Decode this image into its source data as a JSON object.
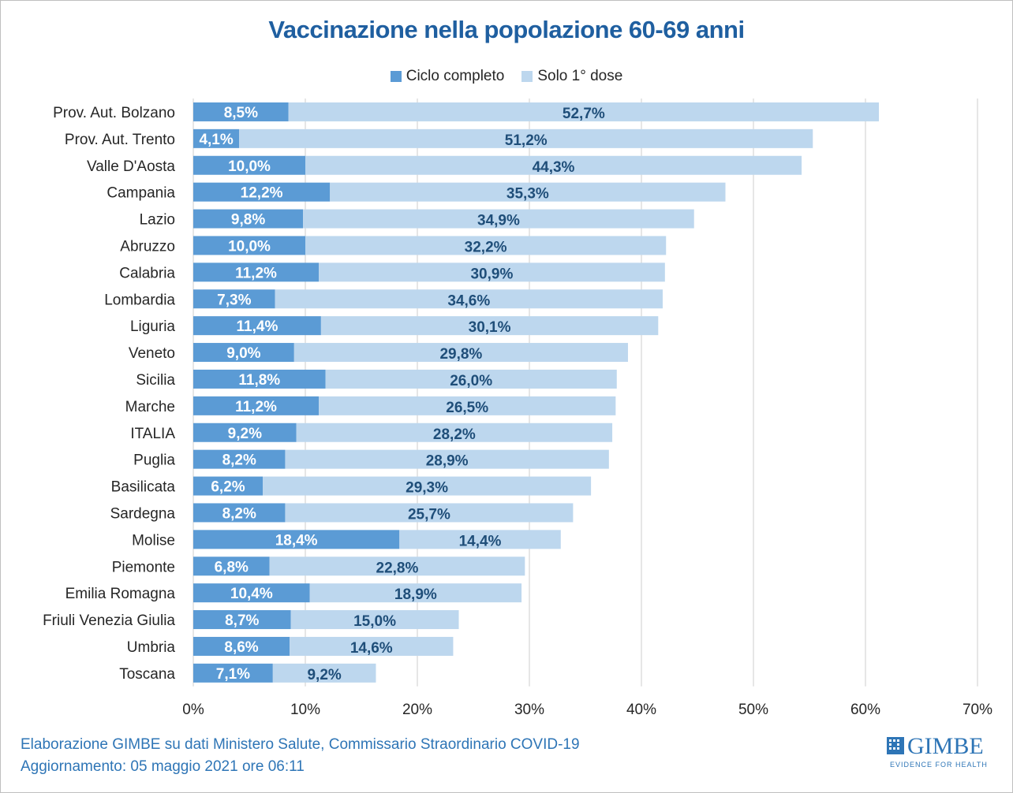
{
  "chart_data": {
    "type": "bar",
    "orientation": "horizontal",
    "stacked": true,
    "title": "Vaccinazione nella popolazione 60-69 anni",
    "categories": [
      "Prov. Aut. Bolzano",
      "Prov. Aut. Trento",
      "Valle D'Aosta",
      "Campania",
      "Lazio",
      "Abruzzo",
      "Calabria",
      "Lombardia",
      "Liguria",
      "Veneto",
      "Sicilia",
      "Marche",
      "ITALIA",
      "Puglia",
      "Basilicata",
      "Sardegna",
      "Molise",
      "Piemonte",
      "Emilia Romagna",
      "Friuli Venezia Giulia",
      "Umbria",
      "Toscana"
    ],
    "series": [
      {
        "name": "Ciclo completo",
        "color": "#5b9bd5",
        "values": [
          8.5,
          4.1,
          10.0,
          12.2,
          9.8,
          10.0,
          11.2,
          7.3,
          11.4,
          9.0,
          11.8,
          11.2,
          9.2,
          8.2,
          6.2,
          8.2,
          18.4,
          6.8,
          10.4,
          8.7,
          8.6,
          7.1
        ],
        "labels": [
          "8,5%",
          "4,1%",
          "10,0%",
          "12,2%",
          "9,8%",
          "10,0%",
          "11,2%",
          "7,3%",
          "11,4%",
          "9,0%",
          "11,8%",
          "11,2%",
          "9,2%",
          "8,2%",
          "6,2%",
          "8,2%",
          "18,4%",
          "6,8%",
          "10,4%",
          "8,7%",
          "8,6%",
          "7,1%"
        ]
      },
      {
        "name": "Solo 1° dose",
        "color": "#bdd7ee",
        "values": [
          52.7,
          51.2,
          44.3,
          35.3,
          34.9,
          32.2,
          30.9,
          34.6,
          30.1,
          29.8,
          26.0,
          26.5,
          28.2,
          28.9,
          29.3,
          25.7,
          14.4,
          22.8,
          18.9,
          15.0,
          14.6,
          9.2
        ],
        "labels": [
          "52,7%",
          "51,2%",
          "44,3%",
          "35,3%",
          "34,9%",
          "32,2%",
          "30,9%",
          "34,6%",
          "30,1%",
          "29,8%",
          "26,0%",
          "26,5%",
          "28,2%",
          "28,9%",
          "29,3%",
          "25,7%",
          "14,4%",
          "22,8%",
          "18,9%",
          "15,0%",
          "14,6%",
          "9,2%"
        ]
      }
    ],
    "xlim": [
      0,
      70
    ],
    "xticks": [
      0,
      10,
      20,
      30,
      40,
      50,
      60,
      70
    ],
    "xtick_labels": [
      "0%",
      "10%",
      "20%",
      "30%",
      "40%",
      "50%",
      "60%",
      "70%"
    ],
    "grid": true,
    "legend_position": "top"
  },
  "colors": {
    "title": "#1f5fa0",
    "label_dark": "#1f4e79",
    "label_light": "#ffffff",
    "footer": "#2e75b6",
    "grid": "#d9d9d9"
  },
  "footer": {
    "line1": "Elaborazione GIMBE su dati Ministero Salute, Commissario Straordinario COVID-19",
    "line2": "Aggiornamento: 05 maggio 2021 ore 06:11"
  },
  "logo": {
    "name": "GIMBE",
    "tagline": "EVIDENCE FOR HEALTH"
  }
}
